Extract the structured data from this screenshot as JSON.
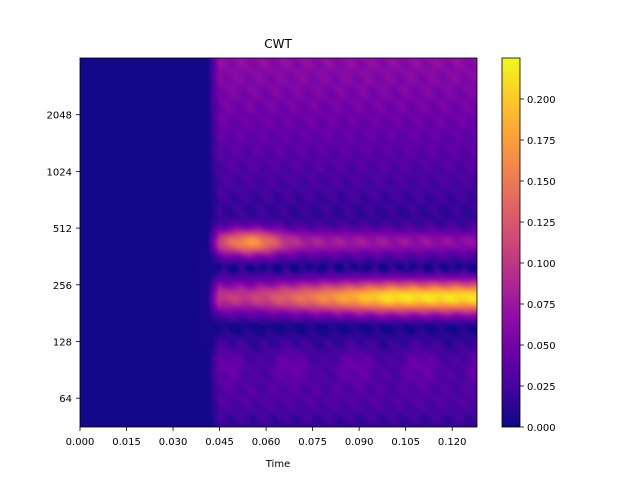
{
  "chart_data": {
    "type": "heatmap",
    "title": "CWT",
    "xlabel": "Time",
    "ylabel": "",
    "xlim": [
      0.0,
      0.128
    ],
    "x_ticks": [
      "0.000",
      "0.015",
      "0.030",
      "0.045",
      "0.060",
      "0.075",
      "0.090",
      "0.105",
      "0.120"
    ],
    "x_tick_values": [
      0.0,
      0.015,
      0.03,
      0.045,
      0.06,
      0.075,
      0.09,
      0.105,
      0.12
    ],
    "y_scale": "log2",
    "ylim": [
      45,
      4096
    ],
    "y_ticks": [
      "64",
      "128",
      "256",
      "512",
      "1024",
      "2048"
    ],
    "y_tick_values": [
      64,
      128,
      256,
      512,
      1024,
      2048
    ],
    "colormap": "plasma",
    "colorbar": {
      "range": [
        0.0,
        0.225
      ],
      "ticks": [
        "0.000",
        "0.025",
        "0.050",
        "0.075",
        "0.100",
        "0.125",
        "0.150",
        "0.175",
        "0.200"
      ],
      "tick_values": [
        0.0,
        0.025,
        0.05,
        0.075,
        0.1,
        0.125,
        0.15,
        0.175,
        0.2
      ]
    },
    "signal_onset_time": 0.043,
    "bands": [
      {
        "frequency": 430,
        "time_range": [
          0.046,
          0.128
        ],
        "peak_value": 0.17,
        "peak_time": 0.055
      },
      {
        "frequency": 220,
        "time_range": [
          0.043,
          0.128
        ],
        "peak_value": 0.21,
        "peak_time": 0.115
      },
      {
        "frequency": 100,
        "time_range": [
          0.048,
          0.128
        ],
        "peak_value": 0.04,
        "peak_time": 0.09
      }
    ]
  }
}
